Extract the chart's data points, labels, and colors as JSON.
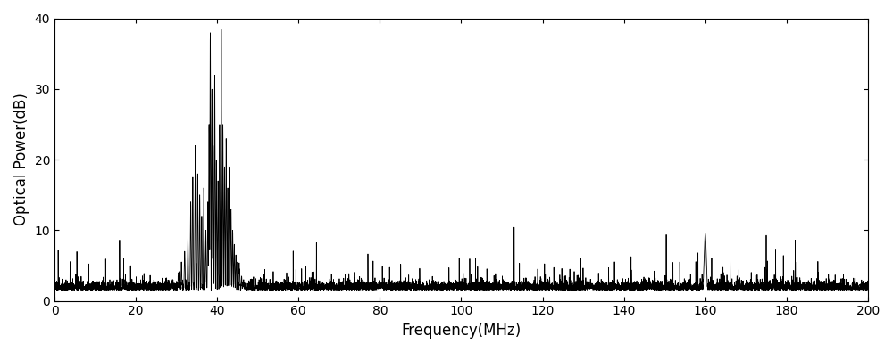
{
  "xlabel": "Frequency(MHz)",
  "ylabel": "Optical Power(dB)",
  "xlim": [
    0,
    200
  ],
  "ylim": [
    0,
    40
  ],
  "xticks": [
    0,
    20,
    40,
    60,
    80,
    100,
    120,
    140,
    160,
    180,
    200
  ],
  "yticks": [
    0,
    10,
    20,
    30,
    40
  ],
  "line_color": "#000000",
  "line_width": 0.6,
  "background_color": "#ffffff",
  "seed": 42
}
